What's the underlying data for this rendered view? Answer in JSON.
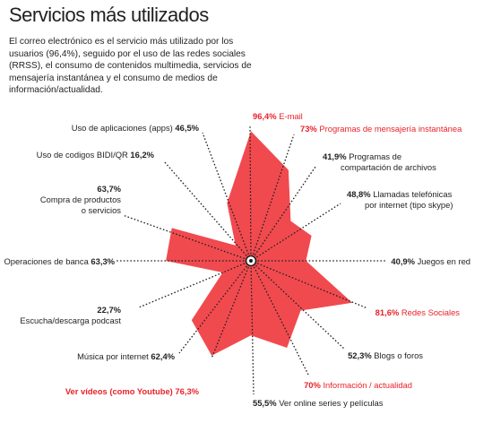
{
  "title": "Servicios más utilizados",
  "intro": "El correo electrónico es el servicio más utilizado por los usuarios (96,4%), seguido por el uso de las redes sociales (RRSS), el consumo de contenidos multimedia, servicios de mensajería instantánea y el consumo de medios de información/actualidad.",
  "colors": {
    "fill": "#f04a4f",
    "highlight": "#e8232a",
    "text": "#231f20"
  },
  "chart_data": {
    "type": "radar",
    "title": "Servicios más utilizados",
    "scale_max": 100,
    "grid": false,
    "series": [
      {
        "values": [
          96.4,
          73,
          41.9,
          48.8,
          40.9,
          81.6,
          52.3,
          70,
          55.5,
          76.3,
          62.4,
          22.7,
          63.3,
          63.7,
          16.2,
          46.5
        ]
      }
    ],
    "categories": [
      {
        "name": "E-mail",
        "value_label": "96,4%",
        "highlight": true
      },
      {
        "name": "Programas de mensajería instantánea",
        "value_label": "73%",
        "highlight": true
      },
      {
        "name": "Programas de compartación de archivos",
        "value_label": "41,9%",
        "highlight": false
      },
      {
        "name": "Llamadas telefónicas por internet (tipo skype)",
        "value_label": "48,8%",
        "highlight": false
      },
      {
        "name": "Juegos en red",
        "value_label": "40,9%",
        "highlight": false
      },
      {
        "name": "Redes Sociales",
        "value_label": "81,6%",
        "highlight": true
      },
      {
        "name": "Blogs o foros",
        "value_label": "52,3%",
        "highlight": false
      },
      {
        "name": "Información / actualidad",
        "value_label": "70%",
        "highlight": true
      },
      {
        "name": "Ver online series y películas",
        "value_label": "55,5%",
        "highlight": false
      },
      {
        "name": "Ver vídeos (como Youtube)",
        "value_label": "76,3%",
        "highlight": true
      },
      {
        "name": "Música por internet",
        "value_label": "62,4%",
        "highlight": false
      },
      {
        "name": "Escucha/descarga podcast",
        "value_label": "22,7%",
        "highlight": false
      },
      {
        "name": "Operaciones de banca",
        "value_label": "63,3%",
        "highlight": false
      },
      {
        "name": "Compra de productos o servicios",
        "value_label": "63,7%",
        "highlight": false
      },
      {
        "name": "Uso de codigos BIDI/QR",
        "value_label": "16,2%",
        "highlight": false
      },
      {
        "name": "Uso de aplicaciones (apps)",
        "value_label": "46,5%",
        "highlight": false
      }
    ]
  }
}
